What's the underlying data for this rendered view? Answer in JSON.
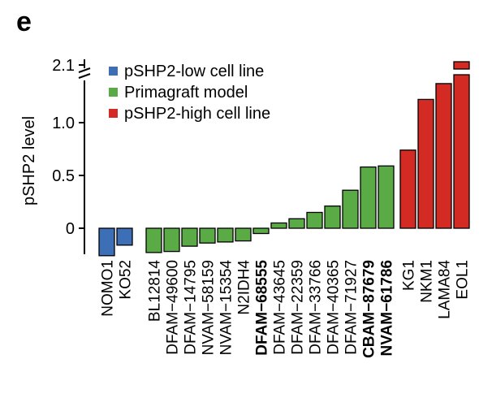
{
  "panel_label": "e",
  "chart_data": {
    "type": "bar",
    "title": "",
    "xlabel": "",
    "ylabel": "pSHP2 level",
    "ylim": [
      -0.25,
      1.35
    ],
    "y_axis_break": true,
    "y_ticks": [
      {
        "label": "0",
        "value": 0
      },
      {
        "label": "0.5",
        "value": 0.5
      },
      {
        "label": "1.0",
        "value": 1.0
      },
      {
        "label": "2.1",
        "value": 2.1
      }
    ],
    "legend": {
      "placement": "top-left",
      "entries": [
        {
          "label": "pSHP2-low cell line",
          "group": "low",
          "color": "#3d6fb6"
        },
        {
          "label": "Primagraft model",
          "group": "prima",
          "color": "#5aab46"
        },
        {
          "label": "pSHP2-high cell line",
          "group": "high",
          "color": "#d42a24"
        }
      ]
    },
    "groups": [
      {
        "name": "low",
        "color": "#3d6fb6",
        "categories": [
          {
            "label": "NOMO1",
            "value": -0.26,
            "bold": false
          },
          {
            "label": "KO52",
            "value": -0.16,
            "bold": false
          }
        ]
      },
      {
        "name": "prima",
        "color": "#5aab46",
        "categories": [
          {
            "label": "BL12814",
            "value": -0.23,
            "bold": false
          },
          {
            "label": "DFAM−49600",
            "value": -0.22,
            "bold": false
          },
          {
            "label": "DFAM−14795",
            "value": -0.17,
            "bold": false
          },
          {
            "label": "NVAM−58159",
            "value": -0.14,
            "bold": false
          },
          {
            "label": "NVAM−15354",
            "value": -0.13,
            "bold": false
          },
          {
            "label": "N2IDH4",
            "value": -0.12,
            "bold": false
          },
          {
            "label": "DFAM−68555",
            "value": -0.05,
            "bold": true
          },
          {
            "label": "DFAM−43645",
            "value": 0.05,
            "bold": false
          },
          {
            "label": "DFAM−22359",
            "value": 0.09,
            "bold": false
          },
          {
            "label": "DFAM−33766",
            "value": 0.15,
            "bold": false
          },
          {
            "label": "DFAM−40365",
            "value": 0.21,
            "bold": false
          },
          {
            "label": "DFAM−71927",
            "value": 0.36,
            "bold": false
          },
          {
            "label": "CBAM−87679",
            "value": 0.58,
            "bold": true
          },
          {
            "label": "NVAM−61786",
            "value": 0.59,
            "bold": true
          }
        ]
      },
      {
        "name": "high",
        "color": "#d42a24",
        "categories": [
          {
            "label": "KG1",
            "value": 0.74,
            "bold": false
          },
          {
            "label": "NKM1",
            "value": 1.22,
            "bold": false
          },
          {
            "label": "LAMA84",
            "value": 1.37,
            "bold": false
          },
          {
            "label": "EOL1",
            "value": 2.1,
            "bold": false
          }
        ]
      }
    ],
    "grid": false
  }
}
